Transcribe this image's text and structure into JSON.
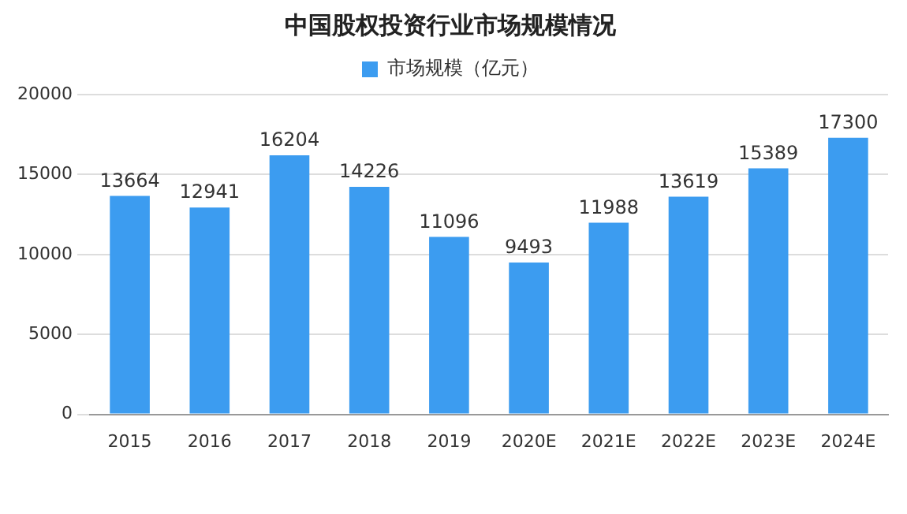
{
  "chart_data": {
    "type": "bar",
    "title": "中国股权投资行业市场规模情况",
    "categories": [
      "2015",
      "2016",
      "2017",
      "2018",
      "2019",
      "2020E",
      "2021E",
      "2022E",
      "2023E",
      "2024E"
    ],
    "series": [
      {
        "name": "市场规模（亿元）",
        "color": "#3c9cf0",
        "values": [
          13664,
          12941,
          16204,
          14226,
          11096,
          9493,
          11988,
          13619,
          15389,
          17300
        ]
      }
    ],
    "ylim": [
      0,
      20000
    ],
    "yticks": [
      0,
      5000,
      10000,
      15000,
      20000
    ],
    "grid": "y",
    "legend": "top",
    "data_labels": true
  }
}
